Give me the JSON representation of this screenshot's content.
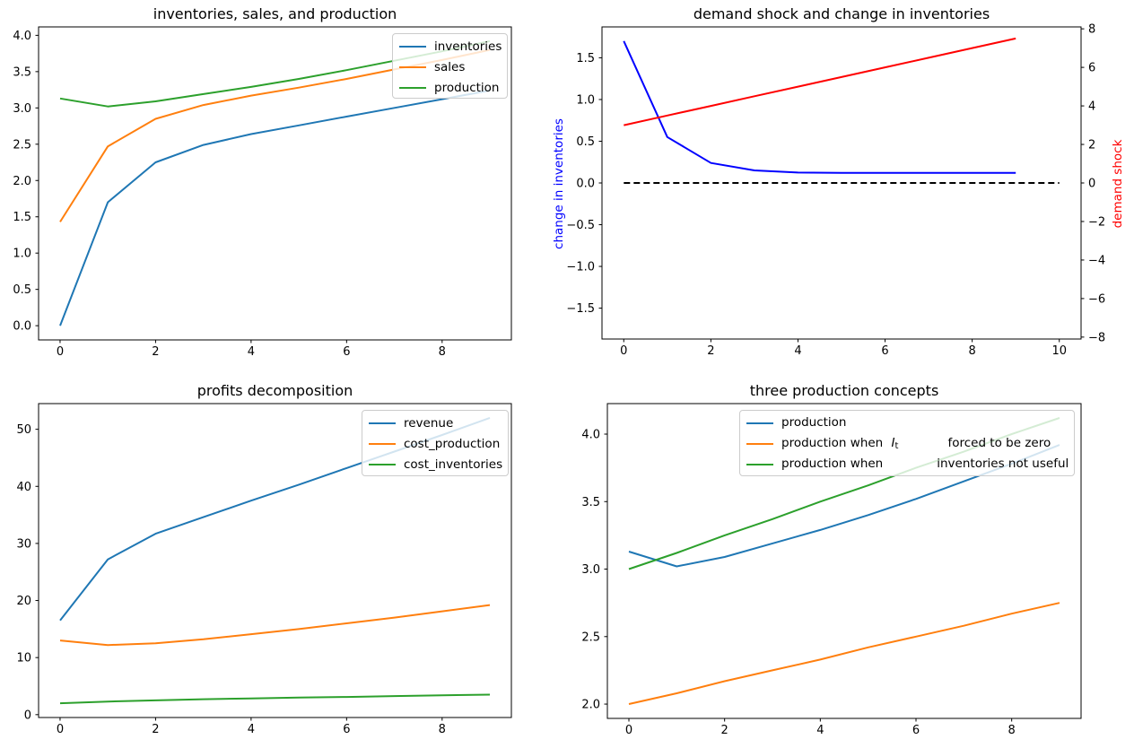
{
  "figure": {
    "background": "#ffffff"
  },
  "chart_data": [
    {
      "type": "line",
      "title": "inventories, sales, and production",
      "x": [
        0,
        1,
        2,
        3,
        4,
        5,
        6,
        7,
        8,
        9
      ],
      "xlim": [
        -0.45,
        9.45
      ],
      "ylim": [
        -0.196,
        4.116
      ],
      "xticks": [
        0,
        2,
        4,
        6,
        8
      ],
      "xtick_labels": [
        "0",
        "2",
        "4",
        "6",
        "8"
      ],
      "yticks": [
        0,
        0.5,
        1,
        1.5,
        2,
        2.5,
        3,
        3.5,
        4
      ],
      "ytick_labels": [
        "0.0",
        "0.5",
        "1.0",
        "1.5",
        "2.0",
        "2.5",
        "3.0",
        "3.5",
        "4.0"
      ],
      "legend_position": "upper right",
      "grid": false,
      "series": [
        {
          "name": "inventories",
          "color": "#1f77b4",
          "values": [
            0.0,
            1.7,
            2.25,
            2.49,
            2.64,
            2.76,
            2.88,
            3.0,
            3.12,
            3.24
          ]
        },
        {
          "name": "sales",
          "color": "#ff7f0e",
          "values": [
            1.43,
            2.47,
            2.85,
            3.04,
            3.17,
            3.28,
            3.4,
            3.53,
            3.66,
            3.8
          ]
        },
        {
          "name": "production",
          "color": "#2ca02c",
          "values": [
            3.13,
            3.02,
            3.09,
            3.19,
            3.29,
            3.4,
            3.52,
            3.65,
            3.78,
            3.92
          ]
        }
      ]
    },
    {
      "type": "line",
      "title": "demand shock and change in inventories",
      "xlim": [
        -0.5,
        10.5
      ],
      "xticks": [
        0,
        2,
        4,
        6,
        8,
        10
      ],
      "xtick_labels": [
        "0",
        "2",
        "4",
        "6",
        "8",
        "10"
      ],
      "ylim": [
        -1.87,
        1.87
      ],
      "yticks": [
        -1.5,
        -1,
        -0.5,
        0,
        0.5,
        1,
        1.5
      ],
      "ytick_labels": [
        "−1.5",
        "−1.0",
        "−0.5",
        "0.0",
        "0.5",
        "1.0",
        "1.5"
      ],
      "ylim_right": [
        -8.1,
        8.1
      ],
      "yticks_right": [
        -8,
        -6,
        -4,
        -2,
        0,
        2,
        4,
        6,
        8
      ],
      "ytick_labels_right": [
        "−8",
        "−6",
        "−4",
        "−2",
        "0",
        "2",
        "4",
        "6",
        "8"
      ],
      "ylabel_left": {
        "text": "change in inventories",
        "color": "#0000ff"
      },
      "ylabel_right": {
        "text": "demand shock",
        "color": "#ff0000"
      },
      "grid": false,
      "series": [
        {
          "name": "change in inventories",
          "color": "#0000ff",
          "axis": "left",
          "x": [
            0,
            1,
            2,
            3,
            4,
            5,
            6,
            7,
            8,
            9
          ],
          "values": [
            1.7,
            0.55,
            0.24,
            0.15,
            0.125,
            0.12,
            0.12,
            0.12,
            0.12,
            0.12
          ]
        },
        {
          "name": "zero line",
          "color": "#000000",
          "axis": "left",
          "dash": true,
          "x": [
            0,
            10
          ],
          "values": [
            0,
            0
          ]
        },
        {
          "name": "demand shock",
          "color": "#ff0000",
          "axis": "right",
          "x": [
            0,
            1,
            2,
            3,
            4,
            5,
            6,
            7,
            8,
            9
          ],
          "values": [
            3.0,
            3.5,
            4.0,
            4.5,
            5.0,
            5.5,
            6.0,
            6.5,
            7.0,
            7.5
          ]
        }
      ]
    },
    {
      "type": "line",
      "title": "profits decomposition",
      "x": [
        0,
        1,
        2,
        3,
        4,
        5,
        6,
        7,
        8,
        9
      ],
      "xlim": [
        -0.45,
        9.45
      ],
      "ylim": [
        -0.5,
        54.5
      ],
      "xticks": [
        0,
        2,
        4,
        6,
        8
      ],
      "xtick_labels": [
        "0",
        "2",
        "4",
        "6",
        "8"
      ],
      "yticks": [
        0,
        10,
        20,
        30,
        40,
        50
      ],
      "ytick_labels": [
        "0",
        "10",
        "20",
        "30",
        "40",
        "50"
      ],
      "legend_position": "upper right",
      "grid": false,
      "series": [
        {
          "name": "revenue",
          "color": "#1f77b4",
          "values": [
            16.5,
            27.2,
            31.7,
            34.6,
            37.5,
            40.3,
            43.2,
            46.1,
            49.0,
            52.0
          ]
        },
        {
          "name": "cost_production",
          "color": "#ff7f0e",
          "values": [
            13.0,
            12.2,
            12.5,
            13.2,
            14.1,
            15.0,
            16.0,
            17.0,
            18.1,
            19.2
          ]
        },
        {
          "name": "cost_inventories",
          "color": "#2ca02c",
          "values": [
            2.0,
            2.3,
            2.5,
            2.7,
            2.85,
            3.0,
            3.1,
            3.25,
            3.4,
            3.5
          ]
        }
      ]
    },
    {
      "type": "line",
      "title": "three production concepts",
      "x": [
        0,
        1,
        2,
        3,
        4,
        5,
        6,
        7,
        8,
        9
      ],
      "xlim": [
        -0.45,
        9.45
      ],
      "ylim": [
        1.894,
        4.226
      ],
      "xticks": [
        0,
        2,
        4,
        6,
        8
      ],
      "xtick_labels": [
        "0",
        "2",
        "4",
        "6",
        "8"
      ],
      "yticks": [
        2,
        2.5,
        3,
        3.5,
        4
      ],
      "ytick_labels": [
        "2.0",
        "2.5",
        "3.0",
        "3.5",
        "4.0"
      ],
      "legend_position": "upper left",
      "grid": false,
      "series": [
        {
          "name": "production",
          "color": "#1f77b4",
          "values": [
            3.13,
            3.02,
            3.09,
            3.19,
            3.29,
            3.4,
            3.52,
            3.65,
            3.78,
            3.92
          ]
        },
        {
          "name": "production when I_t forced to be zero",
          "color": "#ff7f0e",
          "values": [
            2.0,
            2.08,
            2.17,
            2.25,
            2.33,
            2.42,
            2.5,
            2.58,
            2.67,
            2.75
          ]
        },
        {
          "name": "production when inventories not useful",
          "color": "#2ca02c",
          "values": [
            3.0,
            3.12,
            3.25,
            3.37,
            3.5,
            3.62,
            3.75,
            3.87,
            4.0,
            4.12
          ]
        }
      ],
      "legend_rows": [
        {
          "pre": "production"
        },
        {
          "pre": "production when ",
          "math": "I",
          "sub": "t",
          "post": "forced to be zero"
        },
        {
          "pre": "production when",
          "post": "inventories not useful"
        }
      ]
    }
  ]
}
